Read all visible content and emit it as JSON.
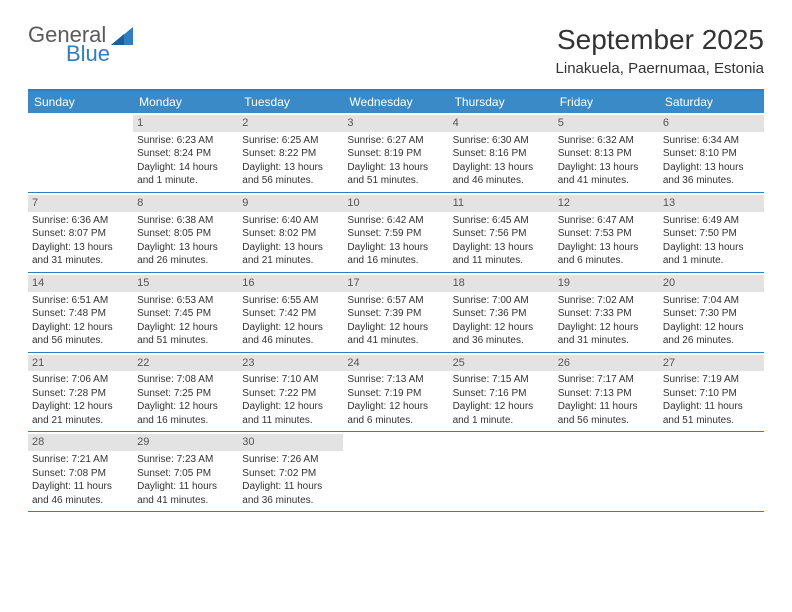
{
  "logo": {
    "main": "General",
    "sub": "Blue"
  },
  "title": "September 2025",
  "location": "Linakuela, Paernumaa, Estonia",
  "weekdays": [
    "Sunday",
    "Monday",
    "Tuesday",
    "Wednesday",
    "Thursday",
    "Friday",
    "Saturday"
  ],
  "colors": {
    "accent": "#2f7ebf",
    "header_bg": "#3a8ac7",
    "daynum_bg": "#e3e3e3",
    "text": "#333333"
  },
  "days": [
    {
      "n": "",
      "sunrise": "",
      "sunset": "",
      "daylight": ""
    },
    {
      "n": "1",
      "sunrise": "Sunrise: 6:23 AM",
      "sunset": "Sunset: 8:24 PM",
      "daylight": "Daylight: 14 hours and 1 minute."
    },
    {
      "n": "2",
      "sunrise": "Sunrise: 6:25 AM",
      "sunset": "Sunset: 8:22 PM",
      "daylight": "Daylight: 13 hours and 56 minutes."
    },
    {
      "n": "3",
      "sunrise": "Sunrise: 6:27 AM",
      "sunset": "Sunset: 8:19 PM",
      "daylight": "Daylight: 13 hours and 51 minutes."
    },
    {
      "n": "4",
      "sunrise": "Sunrise: 6:30 AM",
      "sunset": "Sunset: 8:16 PM",
      "daylight": "Daylight: 13 hours and 46 minutes."
    },
    {
      "n": "5",
      "sunrise": "Sunrise: 6:32 AM",
      "sunset": "Sunset: 8:13 PM",
      "daylight": "Daylight: 13 hours and 41 minutes."
    },
    {
      "n": "6",
      "sunrise": "Sunrise: 6:34 AM",
      "sunset": "Sunset: 8:10 PM",
      "daylight": "Daylight: 13 hours and 36 minutes."
    },
    {
      "n": "7",
      "sunrise": "Sunrise: 6:36 AM",
      "sunset": "Sunset: 8:07 PM",
      "daylight": "Daylight: 13 hours and 31 minutes."
    },
    {
      "n": "8",
      "sunrise": "Sunrise: 6:38 AM",
      "sunset": "Sunset: 8:05 PM",
      "daylight": "Daylight: 13 hours and 26 minutes."
    },
    {
      "n": "9",
      "sunrise": "Sunrise: 6:40 AM",
      "sunset": "Sunset: 8:02 PM",
      "daylight": "Daylight: 13 hours and 21 minutes."
    },
    {
      "n": "10",
      "sunrise": "Sunrise: 6:42 AM",
      "sunset": "Sunset: 7:59 PM",
      "daylight": "Daylight: 13 hours and 16 minutes."
    },
    {
      "n": "11",
      "sunrise": "Sunrise: 6:45 AM",
      "sunset": "Sunset: 7:56 PM",
      "daylight": "Daylight: 13 hours and 11 minutes."
    },
    {
      "n": "12",
      "sunrise": "Sunrise: 6:47 AM",
      "sunset": "Sunset: 7:53 PM",
      "daylight": "Daylight: 13 hours and 6 minutes."
    },
    {
      "n": "13",
      "sunrise": "Sunrise: 6:49 AM",
      "sunset": "Sunset: 7:50 PM",
      "daylight": "Daylight: 13 hours and 1 minute."
    },
    {
      "n": "14",
      "sunrise": "Sunrise: 6:51 AM",
      "sunset": "Sunset: 7:48 PM",
      "daylight": "Daylight: 12 hours and 56 minutes."
    },
    {
      "n": "15",
      "sunrise": "Sunrise: 6:53 AM",
      "sunset": "Sunset: 7:45 PM",
      "daylight": "Daylight: 12 hours and 51 minutes."
    },
    {
      "n": "16",
      "sunrise": "Sunrise: 6:55 AM",
      "sunset": "Sunset: 7:42 PM",
      "daylight": "Daylight: 12 hours and 46 minutes."
    },
    {
      "n": "17",
      "sunrise": "Sunrise: 6:57 AM",
      "sunset": "Sunset: 7:39 PM",
      "daylight": "Daylight: 12 hours and 41 minutes."
    },
    {
      "n": "18",
      "sunrise": "Sunrise: 7:00 AM",
      "sunset": "Sunset: 7:36 PM",
      "daylight": "Daylight: 12 hours and 36 minutes."
    },
    {
      "n": "19",
      "sunrise": "Sunrise: 7:02 AM",
      "sunset": "Sunset: 7:33 PM",
      "daylight": "Daylight: 12 hours and 31 minutes."
    },
    {
      "n": "20",
      "sunrise": "Sunrise: 7:04 AM",
      "sunset": "Sunset: 7:30 PM",
      "daylight": "Daylight: 12 hours and 26 minutes."
    },
    {
      "n": "21",
      "sunrise": "Sunrise: 7:06 AM",
      "sunset": "Sunset: 7:28 PM",
      "daylight": "Daylight: 12 hours and 21 minutes."
    },
    {
      "n": "22",
      "sunrise": "Sunrise: 7:08 AM",
      "sunset": "Sunset: 7:25 PM",
      "daylight": "Daylight: 12 hours and 16 minutes."
    },
    {
      "n": "23",
      "sunrise": "Sunrise: 7:10 AM",
      "sunset": "Sunset: 7:22 PM",
      "daylight": "Daylight: 12 hours and 11 minutes."
    },
    {
      "n": "24",
      "sunrise": "Sunrise: 7:13 AM",
      "sunset": "Sunset: 7:19 PM",
      "daylight": "Daylight: 12 hours and 6 minutes."
    },
    {
      "n": "25",
      "sunrise": "Sunrise: 7:15 AM",
      "sunset": "Sunset: 7:16 PM",
      "daylight": "Daylight: 12 hours and 1 minute."
    },
    {
      "n": "26",
      "sunrise": "Sunrise: 7:17 AM",
      "sunset": "Sunset: 7:13 PM",
      "daylight": "Daylight: 11 hours and 56 minutes."
    },
    {
      "n": "27",
      "sunrise": "Sunrise: 7:19 AM",
      "sunset": "Sunset: 7:10 PM",
      "daylight": "Daylight: 11 hours and 51 minutes."
    },
    {
      "n": "28",
      "sunrise": "Sunrise: 7:21 AM",
      "sunset": "Sunset: 7:08 PM",
      "daylight": "Daylight: 11 hours and 46 minutes."
    },
    {
      "n": "29",
      "sunrise": "Sunrise: 7:23 AM",
      "sunset": "Sunset: 7:05 PM",
      "daylight": "Daylight: 11 hours and 41 minutes."
    },
    {
      "n": "30",
      "sunrise": "Sunrise: 7:26 AM",
      "sunset": "Sunset: 7:02 PM",
      "daylight": "Daylight: 11 hours and 36 minutes."
    },
    {
      "n": "",
      "sunrise": "",
      "sunset": "",
      "daylight": ""
    },
    {
      "n": "",
      "sunrise": "",
      "sunset": "",
      "daylight": ""
    },
    {
      "n": "",
      "sunrise": "",
      "sunset": "",
      "daylight": ""
    },
    {
      "n": "",
      "sunrise": "",
      "sunset": "",
      "daylight": ""
    }
  ]
}
